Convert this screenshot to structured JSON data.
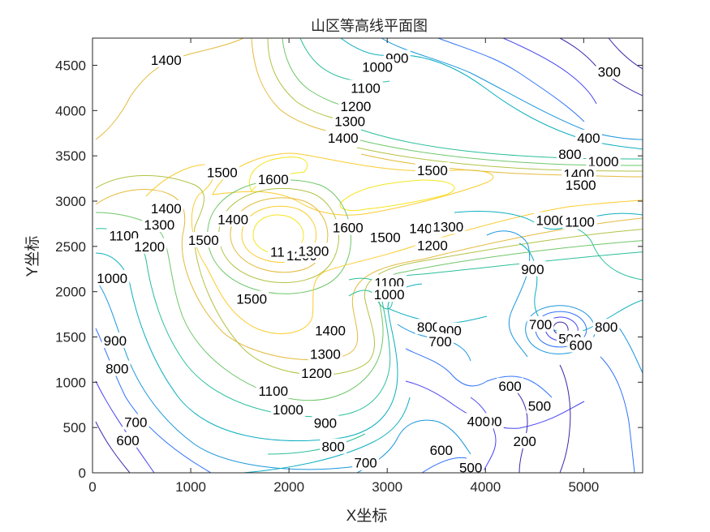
{
  "chart_data": {
    "type": "contour",
    "title": "山区等高线平面图",
    "xlabel": "X坐标",
    "ylabel": "Y坐标",
    "xlim": [
      0,
      5600
    ],
    "ylim": [
      0,
      4800
    ],
    "xticks": [
      0,
      1000,
      2000,
      3000,
      4000,
      5000
    ],
    "yticks": [
      0,
      500,
      1000,
      1500,
      2000,
      2500,
      3000,
      3500,
      4000,
      4500
    ],
    "grid": false,
    "colormap": [
      "#3e26a8",
      "#4743f2",
      "#2f73fa",
      "#1996de",
      "#0cafc0",
      "#29be9a",
      "#6ec76a",
      "#b3c244",
      "#e4ba3b",
      "#fbcc2e",
      "#f4e61f"
    ],
    "clabels": [
      {
        "text": "1400",
        "x": 750,
        "y": 4560
      },
      {
        "text": "900",
        "x": 3100,
        "y": 4580
      },
      {
        "text": "1000",
        "x": 2900,
        "y": 4480
      },
      {
        "text": "1100",
        "x": 2780,
        "y": 4250
      },
      {
        "text": "1200",
        "x": 2680,
        "y": 4050
      },
      {
        "text": "1300",
        "x": 2620,
        "y": 3880
      },
      {
        "text": "1400",
        "x": 2550,
        "y": 3700
      },
      {
        "text": "300",
        "x": 5260,
        "y": 4430
      },
      {
        "text": "400",
        "x": 5050,
        "y": 3700
      },
      {
        "text": "800",
        "x": 4860,
        "y": 3520
      },
      {
        "text": "1000",
        "x": 5200,
        "y": 3440
      },
      {
        "text": "1400",
        "x": 4950,
        "y": 3300
      },
      {
        "text": "1500",
        "x": 4970,
        "y": 3180
      },
      {
        "text": "1500",
        "x": 1320,
        "y": 3320
      },
      {
        "text": "1600",
        "x": 1840,
        "y": 3240
      },
      {
        "text": "1500",
        "x": 3460,
        "y": 3340
      },
      {
        "text": "1400",
        "x": 750,
        "y": 2920
      },
      {
        "text": "1300",
        "x": 680,
        "y": 2740
      },
      {
        "text": "1100",
        "x": 320,
        "y": 2620
      },
      {
        "text": "1200",
        "x": 580,
        "y": 2500
      },
      {
        "text": "1500",
        "x": 1130,
        "y": 2570
      },
      {
        "text": "1400",
        "x": 1430,
        "y": 2800
      },
      {
        "text": "1000",
        "x": 200,
        "y": 2150
      },
      {
        "text": "1100",
        "x": 1960,
        "y": 2440
      },
      {
        "text": "1200",
        "x": 2130,
        "y": 2400
      },
      {
        "text": "1300",
        "x": 2250,
        "y": 2450
      },
      {
        "text": "1600",
        "x": 2600,
        "y": 2710
      },
      {
        "text": "1500",
        "x": 2980,
        "y": 2600
      },
      {
        "text": "1400",
        "x": 3380,
        "y": 2700
      },
      {
        "text": "1300",
        "x": 3620,
        "y": 2720
      },
      {
        "text": "1200",
        "x": 3460,
        "y": 2510
      },
      {
        "text": "1000",
        "x": 4670,
        "y": 2790
      },
      {
        "text": "1100",
        "x": 4960,
        "y": 2770
      },
      {
        "text": "900",
        "x": 4480,
        "y": 2250
      },
      {
        "text": "1500",
        "x": 1620,
        "y": 1920
      },
      {
        "text": "1100",
        "x": 3020,
        "y": 2100
      },
      {
        "text": "1000",
        "x": 3020,
        "y": 1970
      },
      {
        "text": "1400",
        "x": 2420,
        "y": 1570
      },
      {
        "text": "1300",
        "x": 2370,
        "y": 1310
      },
      {
        "text": "1200",
        "x": 2280,
        "y": 1100
      },
      {
        "text": "1100",
        "x": 1840,
        "y": 905
      },
      {
        "text": "1000",
        "x": 1990,
        "y": 700
      },
      {
        "text": "900",
        "x": 230,
        "y": 1460
      },
      {
        "text": "800",
        "x": 250,
        "y": 1150
      },
      {
        "text": "700",
        "x": 440,
        "y": 560
      },
      {
        "text": "600",
        "x": 360,
        "y": 360
      },
      {
        "text": "900",
        "x": 2370,
        "y": 550
      },
      {
        "text": "800",
        "x": 2450,
        "y": 290
      },
      {
        "text": "700",
        "x": 2780,
        "y": 110
      },
      {
        "text": "800",
        "x": 3420,
        "y": 1610
      },
      {
        "text": "900",
        "x": 3640,
        "y": 1570
      },
      {
        "text": "700",
        "x": 3540,
        "y": 1450
      },
      {
        "text": "700",
        "x": 4560,
        "y": 1640
      },
      {
        "text": "500",
        "x": 4860,
        "y": 1480
      },
      {
        "text": "600",
        "x": 4970,
        "y": 1410
      },
      {
        "text": "800",
        "x": 5230,
        "y": 1610
      },
      {
        "text": "600",
        "x": 4250,
        "y": 960
      },
      {
        "text": "500",
        "x": 4550,
        "y": 740
      },
      {
        "text": "300",
        "x": 4050,
        "y": 570
      },
      {
        "text": "400",
        "x": 3930,
        "y": 570
      },
      {
        "text": "600",
        "x": 3550,
        "y": 250
      },
      {
        "text": "500",
        "x": 3850,
        "y": 60
      },
      {
        "text": "200",
        "x": 4400,
        "y": 350
      }
    ]
  }
}
